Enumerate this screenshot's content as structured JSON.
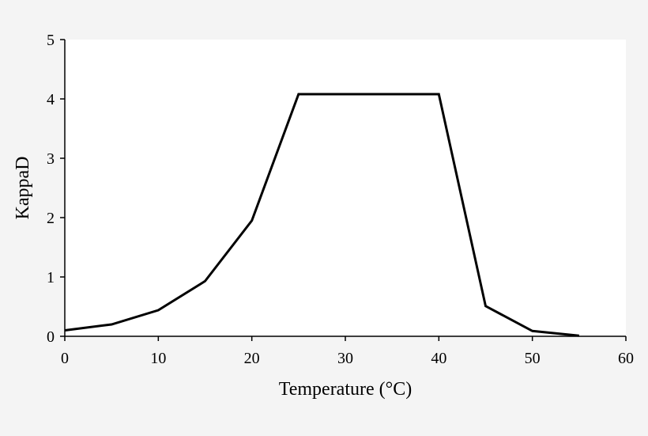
{
  "chart_data": {
    "type": "line",
    "title": "",
    "xlabel": "Temperature (°C)",
    "ylabel": "KappaD",
    "xlim": [
      0,
      60
    ],
    "ylim": [
      0,
      5
    ],
    "x_ticks": [
      0,
      10,
      20,
      30,
      40,
      50,
      60
    ],
    "y_ticks": [
      0,
      1,
      2,
      3,
      4,
      5
    ],
    "grid": false,
    "legend": "none",
    "series": [
      {
        "color": "#000000",
        "x": [
          0,
          5,
          10,
          15,
          20,
          25,
          30,
          35,
          40,
          45,
          50,
          55
        ],
        "y": [
          0.1,
          0.2,
          0.44,
          0.93,
          1.95,
          4.08,
          4.08,
          4.08,
          4.08,
          0.51,
          0.09,
          0.01
        ]
      }
    ]
  }
}
